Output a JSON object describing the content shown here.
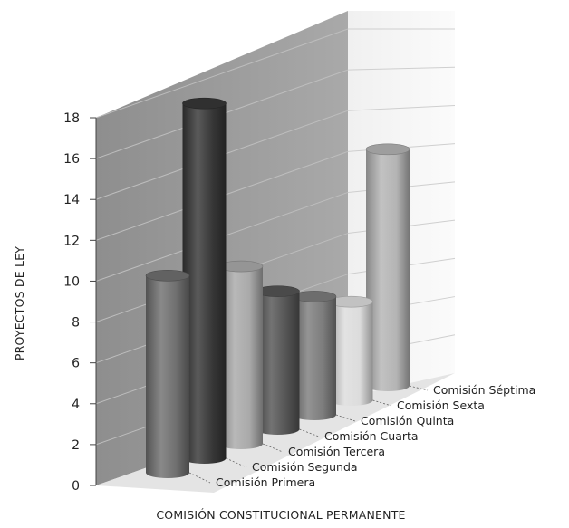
{
  "chart_data": {
    "type": "bar",
    "style": "3d-cylinder",
    "title": "",
    "xlabel": "COMISIÓN CONSTITUCIONAL PERMANENTE",
    "ylabel": "PROYECTOS DE LEY",
    "ylim": [
      0,
      18
    ],
    "yticks": [
      "0",
      "2",
      "4",
      "6",
      "8",
      "10",
      "12",
      "14",
      "16",
      "18"
    ],
    "grid": true,
    "categories": [
      "Comisión Primera",
      "Comisión Segunda",
      "Comisión Tercera",
      "Comisión Cuarta",
      "Comisión Quinta",
      "Comisión Sexta",
      "Comisión Séptima"
    ],
    "values": [
      10,
      18,
      9,
      7,
      6,
      5,
      12
    ],
    "colors": [
      "#6f6f6f",
      "#363636",
      "#a9a9a9",
      "#545454",
      "#7c7c7c",
      "#dcdcdc",
      "#b4b4b4"
    ]
  }
}
